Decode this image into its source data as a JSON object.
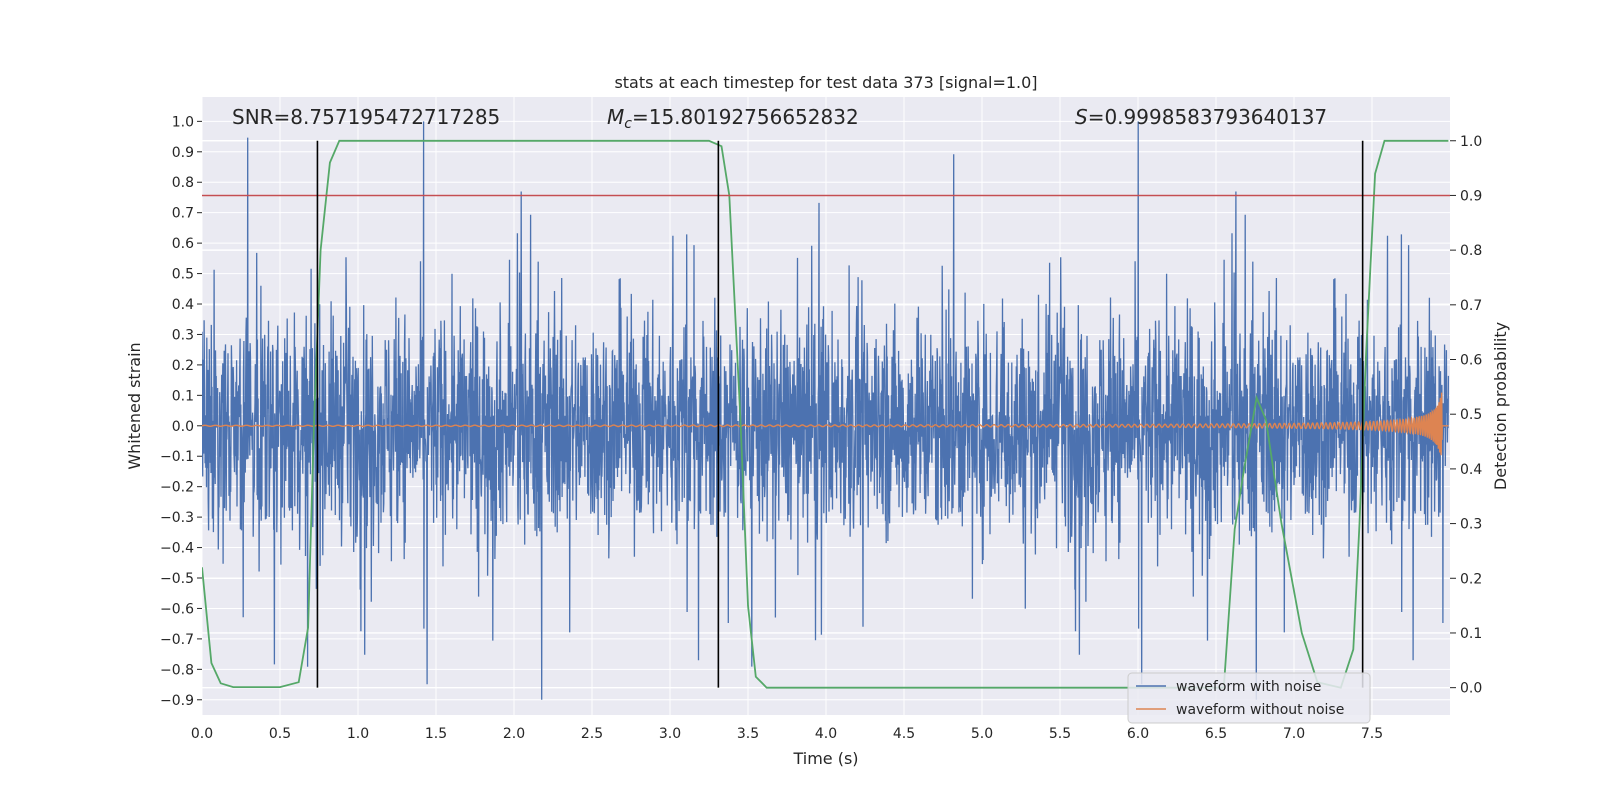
{
  "chart_data": {
    "type": "line",
    "title": "stats at each timestep for test data 373 [signal=1.0]",
    "xlabel": "Time (s)",
    "ylabel_left": "Whitened strain",
    "ylabel_right": "Detection probability",
    "xlim": [
      0.0,
      8.0
    ],
    "ylim_left": [
      -0.95,
      1.08
    ],
    "ylim_right": [
      -0.05,
      1.08
    ],
    "x_ticks": [
      "0.0",
      "0.5",
      "1.0",
      "1.5",
      "2.0",
      "2.5",
      "3.0",
      "3.5",
      "4.0",
      "4.5",
      "5.0",
      "5.5",
      "6.0",
      "6.5",
      "7.0",
      "7.5"
    ],
    "y_ticks_left": [
      "-0.9",
      "-0.8",
      "-0.7",
      "-0.6",
      "-0.5",
      "-0.4",
      "-0.3",
      "-0.2",
      "-0.1",
      "0.0",
      "0.1",
      "0.2",
      "0.3",
      "0.4",
      "0.5",
      "0.6",
      "0.7",
      "0.8",
      "0.9",
      "1.0"
    ],
    "y_ticks_right": [
      "0.0",
      "0.1",
      "0.2",
      "0.3",
      "0.4",
      "0.5",
      "0.6",
      "0.7",
      "0.8",
      "0.9",
      "1.0"
    ],
    "grid": true,
    "legend_position": "bottom-right",
    "annotations": {
      "snr": "SNR=8.757195472717285",
      "mc_symbol": "M",
      "mc_subscript": "c",
      "mc_value": "=15.80192756652832",
      "s_symbol": "S",
      "s_value": "=0.9998583793640137"
    },
    "threshold_line": {
      "axis": "right",
      "y": 0.9,
      "color": "#c44e52"
    },
    "vertical_lines": [
      0.74,
      3.31,
      7.44
    ],
    "series": [
      {
        "name": "waveform with noise",
        "color": "#4c72b0"
      },
      {
        "name": "waveform without noise",
        "color": "#dd8452"
      },
      {
        "name": "",
        "color": "#55a868",
        "axis": "right",
        "points": [
          [
            0.0,
            0.22
          ],
          [
            0.06,
            0.045
          ],
          [
            0.12,
            0.008
          ],
          [
            0.2,
            0.001
          ],
          [
            0.5,
            0.001
          ],
          [
            0.62,
            0.01
          ],
          [
            0.68,
            0.11
          ],
          [
            0.72,
            0.5
          ],
          [
            0.76,
            0.8
          ],
          [
            0.82,
            0.96
          ],
          [
            0.88,
            1.0
          ],
          [
            3.25,
            1.0
          ],
          [
            3.33,
            0.99
          ],
          [
            3.38,
            0.9
          ],
          [
            3.45,
            0.5
          ],
          [
            3.5,
            0.15
          ],
          [
            3.55,
            0.02
          ],
          [
            3.62,
            0.0
          ],
          [
            6.55,
            0.0
          ],
          [
            6.62,
            0.29
          ],
          [
            6.68,
            0.4
          ],
          [
            6.76,
            0.53
          ],
          [
            6.82,
            0.49
          ],
          [
            6.92,
            0.3
          ],
          [
            7.05,
            0.1
          ],
          [
            7.15,
            0.01
          ],
          [
            7.3,
            0.0
          ],
          [
            7.38,
            0.07
          ],
          [
            7.42,
            0.3
          ],
          [
            7.46,
            0.6
          ],
          [
            7.52,
            0.94
          ],
          [
            7.58,
            1.0
          ],
          [
            7.99,
            1.0
          ]
        ]
      }
    ]
  }
}
